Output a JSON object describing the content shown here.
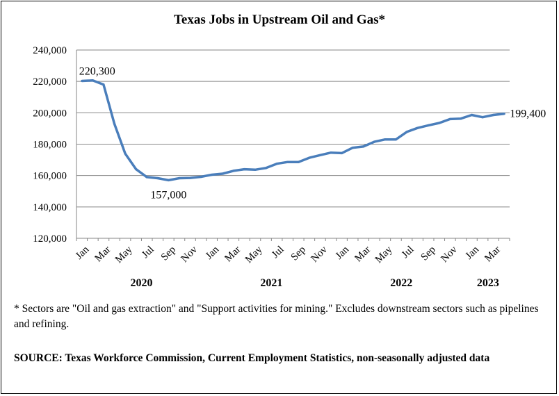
{
  "chart_data": {
    "type": "line",
    "title": "Texas Jobs in Upstream Oil and Gas*",
    "xlabel": "",
    "ylabel": "",
    "ylim": [
      120000,
      240000
    ],
    "y_ticks": [
      "120,000",
      "140,000",
      "160,000",
      "180,000",
      "200,000",
      "220,000",
      "240,000"
    ],
    "x_tick_labels": [
      "Jan",
      "Mar",
      "May",
      "Jul",
      "Sep",
      "Nov",
      "Jan",
      "Mar",
      "May",
      "Jul",
      "Sep",
      "Nov",
      "Jan",
      "Mar",
      "May",
      "Jul",
      "Sep",
      "Nov",
      "Jan",
      "Mar"
    ],
    "years": [
      "2020",
      "2021",
      "2022",
      "2023"
    ],
    "grid": true,
    "series": [
      {
        "color": "#4a7ebb",
        "x": [
          "2020-01",
          "2020-02",
          "2020-03",
          "2020-04",
          "2020-05",
          "2020-06",
          "2020-07",
          "2020-08",
          "2020-09",
          "2020-10",
          "2020-11",
          "2020-12",
          "2021-01",
          "2021-02",
          "2021-03",
          "2021-04",
          "2021-05",
          "2021-06",
          "2021-07",
          "2021-08",
          "2021-09",
          "2021-10",
          "2021-11",
          "2021-12",
          "2022-01",
          "2022-02",
          "2022-03",
          "2022-04",
          "2022-05",
          "2022-06",
          "2022-07",
          "2022-08",
          "2022-09",
          "2022-10",
          "2022-11",
          "2022-12",
          "2023-01",
          "2023-02",
          "2023-03",
          "2023-04"
        ],
        "values": [
          220300,
          220600,
          218000,
          193000,
          174000,
          164000,
          159000,
          158300,
          157000,
          158300,
          158500,
          159200,
          160500,
          161200,
          163000,
          164000,
          163700,
          164800,
          167500,
          168600,
          168600,
          171300,
          173000,
          174600,
          174300,
          177700,
          178500,
          181500,
          183000,
          183000,
          187800,
          190300,
          192000,
          193500,
          196000,
          196300,
          198600,
          197200,
          198600,
          199400
        ]
      }
    ],
    "annotations": [
      "220,300",
      "157,000",
      "199,400"
    ]
  },
  "footnote": "* Sectors are \"Oil and gas extraction\" and \"Support activities for mining.\"  Excludes downstream sectors such as pipelines and refining.",
  "source": "SOURCE: Texas Workforce Commission, Current Employment Statistics, non-seasonally adjusted data"
}
